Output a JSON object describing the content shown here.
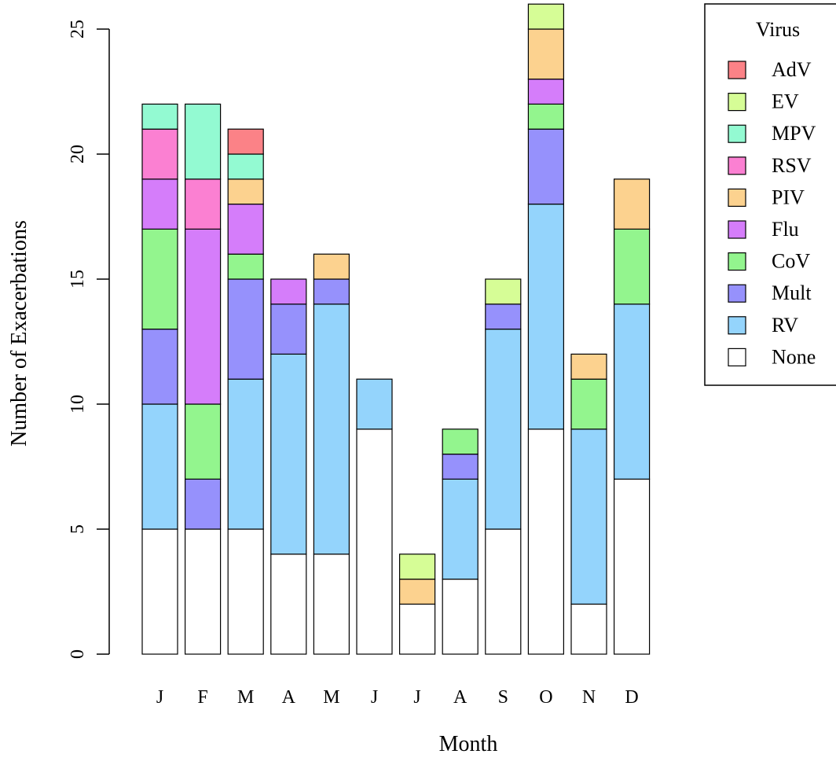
{
  "chart_data": {
    "type": "bar",
    "stacked": true,
    "xlabel": "Month",
    "ylabel": "Number of Exacerbations",
    "ylim": [
      0,
      26
    ],
    "yticks": [
      0,
      5,
      10,
      15,
      20,
      25
    ],
    "categories": [
      "J",
      "F",
      "M",
      "A",
      "M",
      "J",
      "J",
      "A",
      "S",
      "O",
      "N",
      "D"
    ],
    "series": [
      {
        "name": "None",
        "color": "#ffffff",
        "values": [
          5,
          5,
          5,
          4,
          4,
          9,
          2,
          3,
          5,
          9,
          2,
          7
        ]
      },
      {
        "name": "RV",
        "color": "#94d4fc",
        "values": [
          5,
          0,
          6,
          8,
          10,
          2,
          0,
          4,
          8,
          9,
          7,
          7
        ]
      },
      {
        "name": "Mult",
        "color": "#9691fc",
        "values": [
          3,
          2,
          4,
          2,
          1,
          0,
          0,
          1,
          1,
          3,
          0,
          0
        ]
      },
      {
        "name": "CoV",
        "color": "#93f58e",
        "values": [
          4,
          3,
          1,
          0,
          0,
          0,
          0,
          1,
          0,
          1,
          2,
          3
        ]
      },
      {
        "name": "Flu",
        "color": "#d57dfa",
        "values": [
          2,
          7,
          2,
          1,
          0,
          0,
          0,
          0,
          0,
          1,
          0,
          0
        ]
      },
      {
        "name": "PIV",
        "color": "#fcd28f",
        "values": [
          0,
          0,
          1,
          0,
          1,
          0,
          1,
          0,
          0,
          2,
          1,
          2
        ]
      },
      {
        "name": "RSV",
        "color": "#fb80d2",
        "values": [
          2,
          2,
          0,
          0,
          0,
          0,
          0,
          0,
          0,
          0,
          0,
          0
        ]
      },
      {
        "name": "MPV",
        "color": "#93fad2",
        "values": [
          1,
          3,
          1,
          0,
          0,
          0,
          0,
          0,
          0,
          0,
          0,
          0
        ]
      },
      {
        "name": "EV",
        "color": "#d6fd96",
        "values": [
          0,
          0,
          0,
          0,
          0,
          0,
          1,
          0,
          1,
          1,
          0,
          0
        ]
      },
      {
        "name": "AdV",
        "color": "#fb8287",
        "values": [
          0,
          0,
          1,
          0,
          0,
          0,
          0,
          0,
          0,
          0,
          0,
          0
        ]
      }
    ],
    "legend": {
      "title": "Virus",
      "placement": "top-right",
      "order": [
        "AdV",
        "EV",
        "MPV",
        "RSV",
        "PIV",
        "Flu",
        "CoV",
        "Mult",
        "RV",
        "None"
      ]
    }
  }
}
